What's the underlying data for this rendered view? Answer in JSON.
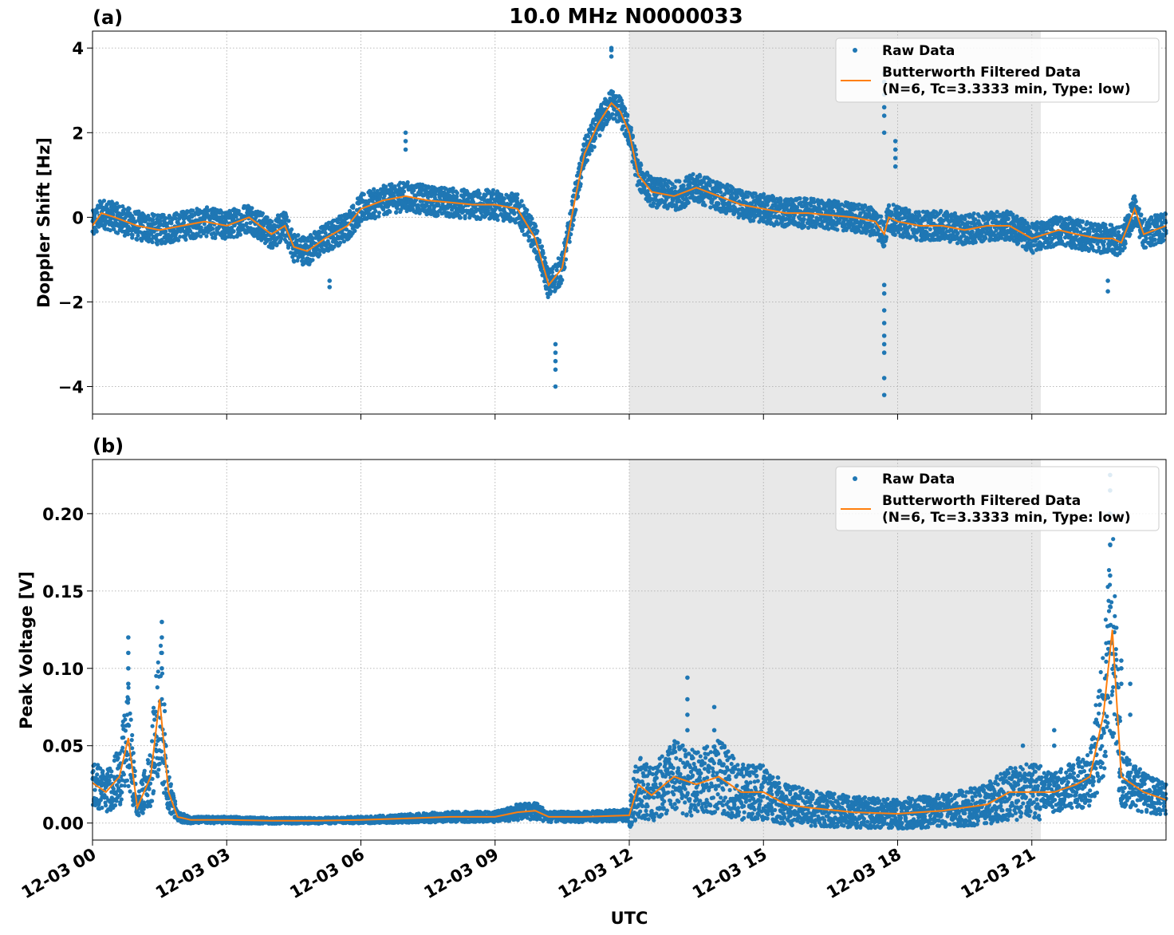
{
  "figure": {
    "title": "10.0 MHz N0000033",
    "xlabel": "UTC",
    "colors": {
      "raw": "#1f77b4",
      "filtered": "#ff7f0e",
      "shade": "#e8e8e8",
      "grid": "#b0b0b0"
    }
  },
  "chart_data": [
    {
      "type": "scatter",
      "panel_label": "(a)",
      "ylabel": "Doppler Shift [Hz]",
      "x_range": [
        "12-03 00:00",
        "12-03 24:00"
      ],
      "xlim_hours": [
        0,
        24
      ],
      "ylim": [
        -4.65,
        4.4
      ],
      "yticks": [
        4,
        2,
        0,
        -2,
        -4
      ],
      "ytick_labels": [
        "4",
        "2",
        "0",
        "−2",
        "−4"
      ],
      "xticks_hours": [
        0,
        3,
        6,
        9,
        12,
        15,
        18,
        21
      ],
      "xtick_labels": [
        "12-03 00",
        "12-03 03",
        "12-03 06",
        "12-03 09",
        "12-03 12",
        "12-03 15",
        "12-03 18",
        "12-03 21"
      ],
      "shaded_hours": [
        12.0,
        21.2
      ],
      "grid": true,
      "legend_position": "top-right",
      "legend": [
        {
          "label": "Raw Data",
          "kind": "marker"
        },
        {
          "label": "Butterworth Filtered Data",
          "label2": "(N=6, Tc=3.3333 min, Type: low)",
          "kind": "line"
        }
      ],
      "series": [
        {
          "name": "Butterworth Filtered Data",
          "style": "line",
          "x": [
            0,
            0.2,
            0.5,
            1.0,
            1.5,
            2.0,
            2.5,
            3.0,
            3.5,
            4.0,
            4.3,
            4.5,
            4.8,
            5.2,
            5.7,
            6.0,
            6.5,
            7.0,
            7.5,
            8.0,
            8.5,
            9.0,
            9.5,
            9.9,
            10.2,
            10.5,
            10.8,
            11.0,
            11.3,
            11.6,
            11.8,
            12.0,
            12.2,
            12.5,
            13.0,
            13.5,
            14.0,
            14.5,
            15.0,
            15.5,
            16.0,
            16.5,
            17.0,
            17.5,
            17.7,
            17.8,
            18.0,
            18.5,
            19.0,
            19.5,
            20.0,
            20.5,
            21.0,
            21.3,
            21.6,
            22.0,
            22.5,
            22.8,
            23.0,
            23.3,
            23.5,
            24.0
          ],
          "y": [
            -0.2,
            0.1,
            0.0,
            -0.2,
            -0.3,
            -0.2,
            -0.1,
            -0.2,
            0.0,
            -0.4,
            -0.2,
            -0.7,
            -0.8,
            -0.5,
            -0.2,
            0.2,
            0.4,
            0.5,
            0.4,
            0.35,
            0.3,
            0.3,
            0.2,
            -0.5,
            -1.6,
            -1.2,
            0.5,
            1.5,
            2.2,
            2.7,
            2.5,
            2.0,
            1.0,
            0.6,
            0.5,
            0.7,
            0.5,
            0.3,
            0.2,
            0.1,
            0.1,
            0.05,
            0.0,
            -0.1,
            -0.4,
            0.0,
            -0.1,
            -0.2,
            -0.2,
            -0.3,
            -0.2,
            -0.2,
            -0.5,
            -0.4,
            -0.3,
            -0.4,
            -0.5,
            -0.5,
            -0.6,
            0.2,
            -0.4,
            -0.2
          ]
        },
        {
          "name": "Raw Data",
          "style": "scatter-band",
          "spread_hz": 0.35,
          "outliers": [
            {
              "x": 17.7,
              "y": [
                -4.2,
                -3.8,
                -3.2,
                -3.0,
                -2.8,
                -2.5,
                -2.2,
                -1.8,
                -1.6,
                2.0,
                2.4,
                2.6,
                2.9,
                3.2,
                3.4
              ]
            },
            {
              "x": 17.95,
              "y": [
                1.2,
                1.4,
                1.6,
                1.8
              ]
            },
            {
              "x": 10.35,
              "y": [
                -4.0,
                -3.6,
                -3.4,
                -3.2,
                -3.0
              ]
            },
            {
              "x": 11.6,
              "y": [
                3.8,
                3.95,
                4.0
              ]
            },
            {
              "x": 7.0,
              "y": [
                1.6,
                1.8,
                2.0
              ]
            },
            {
              "x": 5.3,
              "y": [
                -1.65,
                -1.5
              ]
            },
            {
              "x": 22.7,
              "y": [
                -1.75,
                -1.5
              ]
            }
          ]
        }
      ]
    },
    {
      "type": "scatter",
      "panel_label": "(b)",
      "ylabel": "Peak Voltage [V]",
      "x_range": [
        "12-03 00:00",
        "12-03 24:00"
      ],
      "xlim_hours": [
        0,
        24
      ],
      "ylim": [
        -0.011,
        0.235
      ],
      "yticks": [
        0.2,
        0.15,
        0.1,
        0.05,
        0.0
      ],
      "ytick_labels": [
        "0.20",
        "0.15",
        "0.10",
        "0.05",
        "0.00"
      ],
      "xticks_hours": [
        0,
        3,
        6,
        9,
        12,
        15,
        18,
        21
      ],
      "xtick_labels": [
        "12-03 00",
        "12-03 03",
        "12-03 06",
        "12-03 09",
        "12-03 12",
        "12-03 15",
        "12-03 18",
        "12-03 21"
      ],
      "shaded_hours": [
        12.0,
        21.2
      ],
      "grid": true,
      "legend_position": "top-right",
      "legend": [
        {
          "label": "Raw Data",
          "kind": "marker"
        },
        {
          "label": "Butterworth Filtered Data",
          "label2": "(N=6, Tc=3.3333 min, Type: low)",
          "kind": "line"
        }
      ],
      "series": [
        {
          "name": "Butterworth Filtered Data",
          "style": "line",
          "x": [
            0,
            0.3,
            0.6,
            0.8,
            1.0,
            1.3,
            1.5,
            1.7,
            1.9,
            2.2,
            3.0,
            4.0,
            5.0,
            6.0,
            7.0,
            8.0,
            9.0,
            9.5,
            9.9,
            10.2,
            11.0,
            12.0,
            12.2,
            12.5,
            13.0,
            13.5,
            14.0,
            14.5,
            15.0,
            15.5,
            16.0,
            17.0,
            18.0,
            19.0,
            19.5,
            20.0,
            20.5,
            21.0,
            21.5,
            22.0,
            22.3,
            22.6,
            22.8,
            23.0,
            23.5,
            24.0
          ],
          "y": [
            0.026,
            0.02,
            0.03,
            0.055,
            0.01,
            0.03,
            0.08,
            0.02,
            0.004,
            0.002,
            0.002,
            0.0015,
            0.0015,
            0.002,
            0.003,
            0.004,
            0.004,
            0.007,
            0.008,
            0.004,
            0.004,
            0.005,
            0.025,
            0.018,
            0.03,
            0.025,
            0.03,
            0.02,
            0.02,
            0.012,
            0.01,
            0.007,
            0.006,
            0.008,
            0.01,
            0.012,
            0.02,
            0.02,
            0.02,
            0.025,
            0.03,
            0.07,
            0.125,
            0.03,
            0.02,
            0.015
          ]
        },
        {
          "name": "Raw Data",
          "style": "scatter-band",
          "spread_v": 0.012,
          "outliers": [
            {
              "x": 0.8,
              "y": [
                0.08,
                0.09,
                0.1,
                0.11,
                0.12
              ]
            },
            {
              "x": 1.55,
              "y": [
                0.1,
                0.11,
                0.12,
                0.13
              ]
            },
            {
              "x": 13.3,
              "y": [
                0.06,
                0.07,
                0.08,
                0.094
              ]
            },
            {
              "x": 13.9,
              "y": [
                0.06,
                0.075
              ]
            },
            {
              "x": 22.75,
              "y": [
                0.14,
                0.16,
                0.18,
                0.2,
                0.215,
                0.225
              ]
            },
            {
              "x": 23.0,
              "y": [
                0.09,
                0.1,
                0.105
              ]
            },
            {
              "x": 23.2,
              "y": [
                0.07,
                0.09
              ]
            },
            {
              "x": 21.5,
              "y": [
                0.05,
                0.06
              ]
            },
            {
              "x": 20.8,
              "y": [
                0.05
              ]
            }
          ]
        }
      ]
    }
  ]
}
